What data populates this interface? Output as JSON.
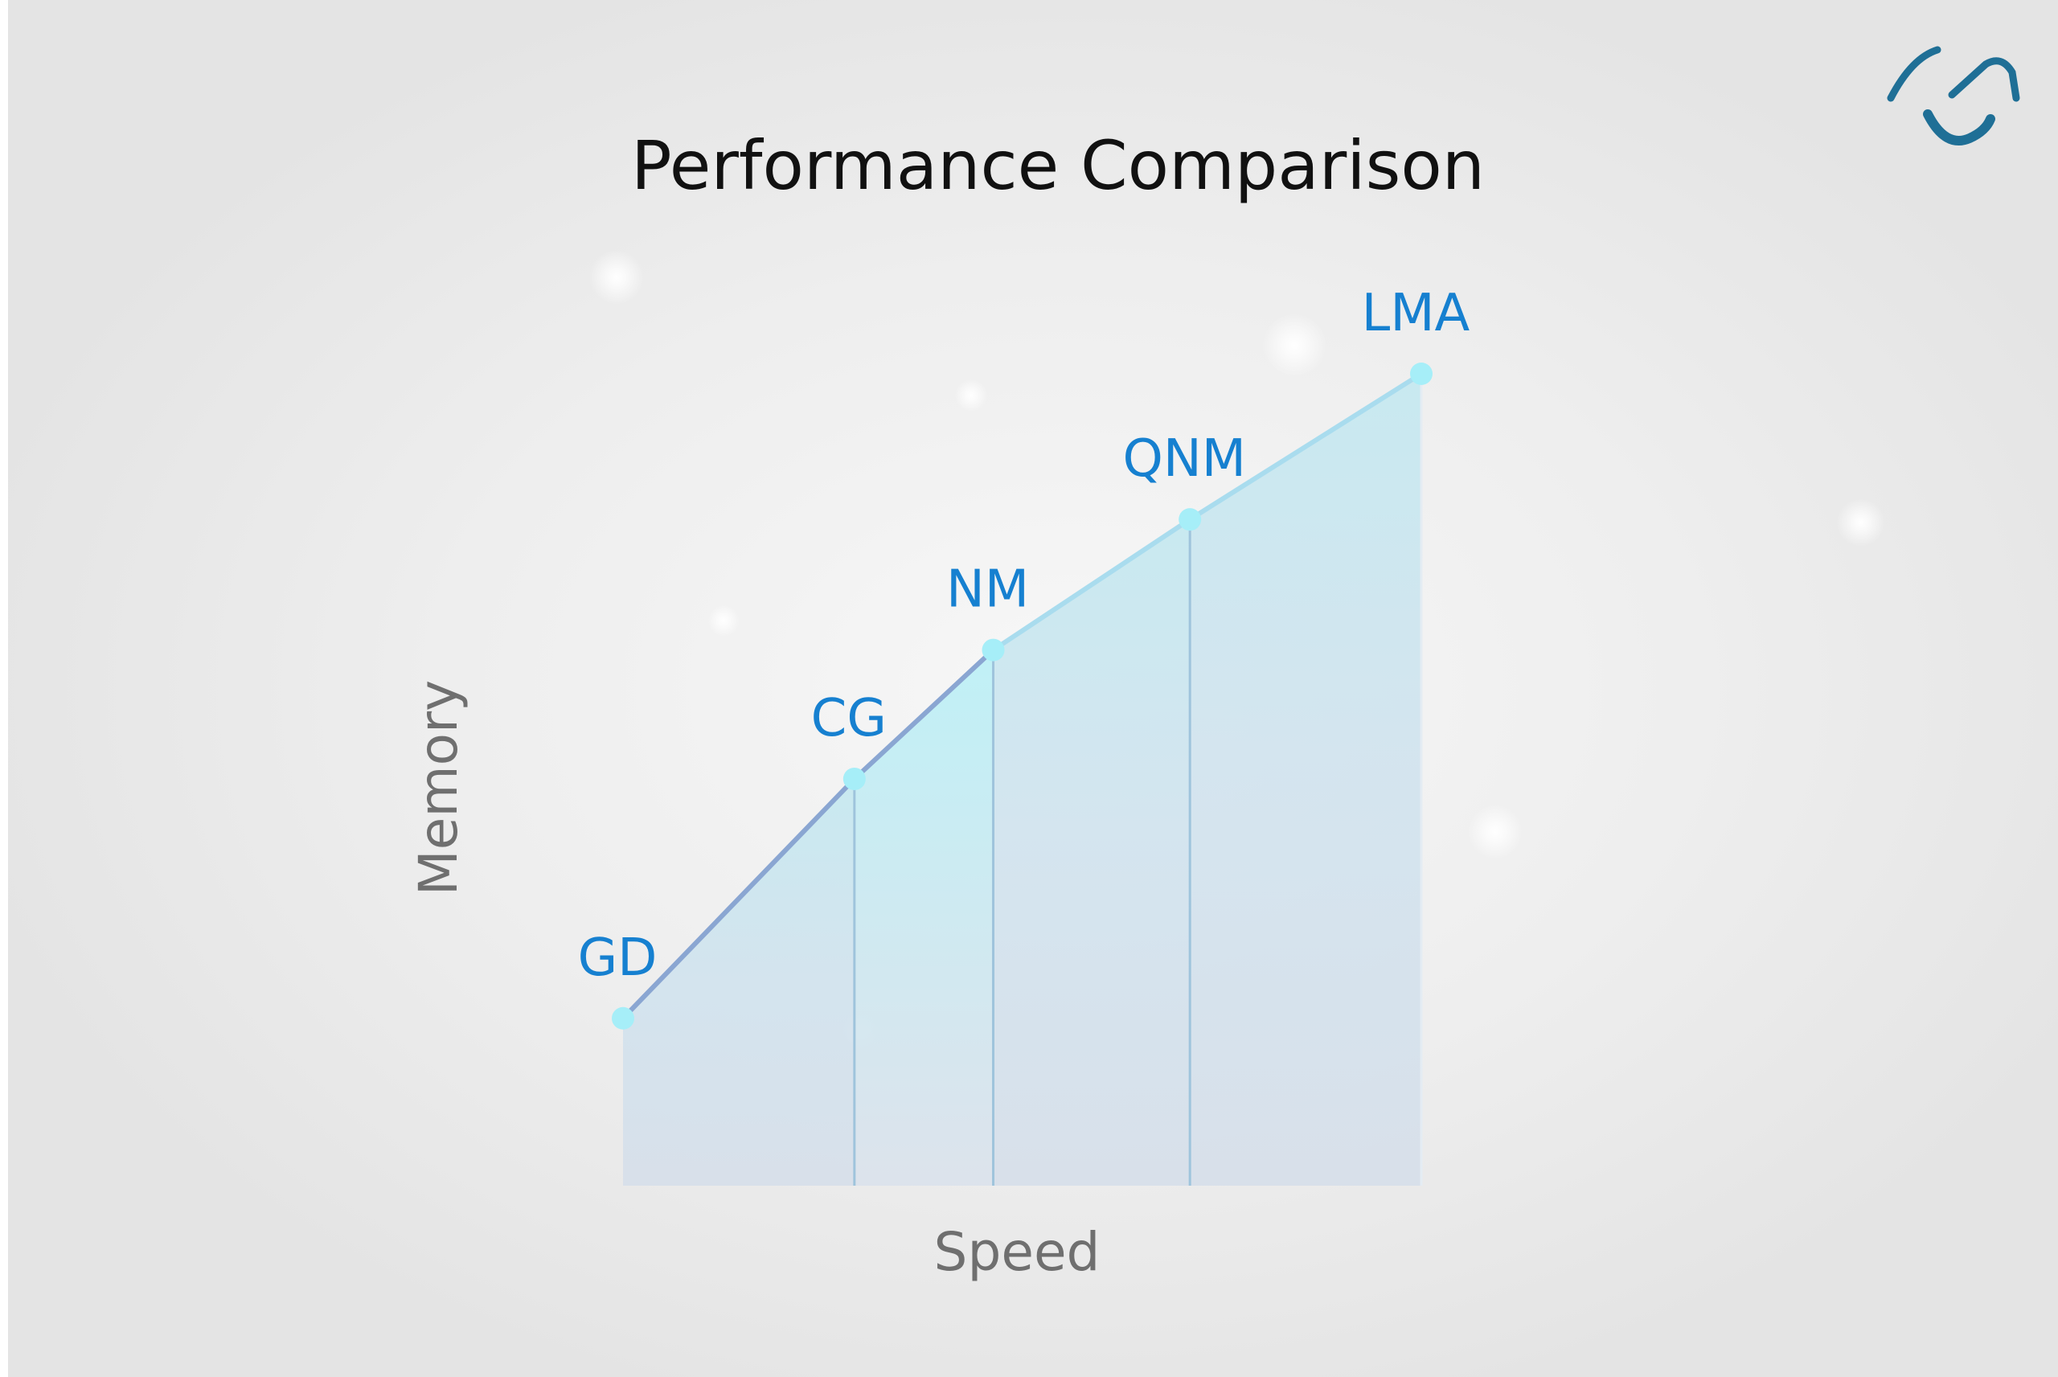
{
  "colors": {
    "background": "#e6e6e6",
    "accent_label": "#1680d0",
    "line": "#8aa6d2",
    "point": "#a6eef8",
    "area_fill": "#cfe4ee",
    "logo": "#1f6f96"
  },
  "logo": {
    "icon": "swoosh-logo-icon"
  },
  "chart_data": {
    "type": "area",
    "title": "Performance Comparison",
    "xlabel": "Speed",
    "ylabel": "Memory",
    "points": [
      {
        "label": "GD",
        "x": 1,
        "y": 1.0
      },
      {
        "label": "CG",
        "x": 2,
        "y": 2.43
      },
      {
        "label": "NM",
        "x": 2.6,
        "y": 3.2
      },
      {
        "label": "QNM",
        "x": 3.45,
        "y": 3.98
      },
      {
        "label": "LMA",
        "x": 4.45,
        "y": 4.85
      }
    ],
    "xlim": [
      1,
      4.45
    ],
    "ylim": [
      0,
      4.85
    ],
    "grid": false,
    "legend": "none"
  }
}
